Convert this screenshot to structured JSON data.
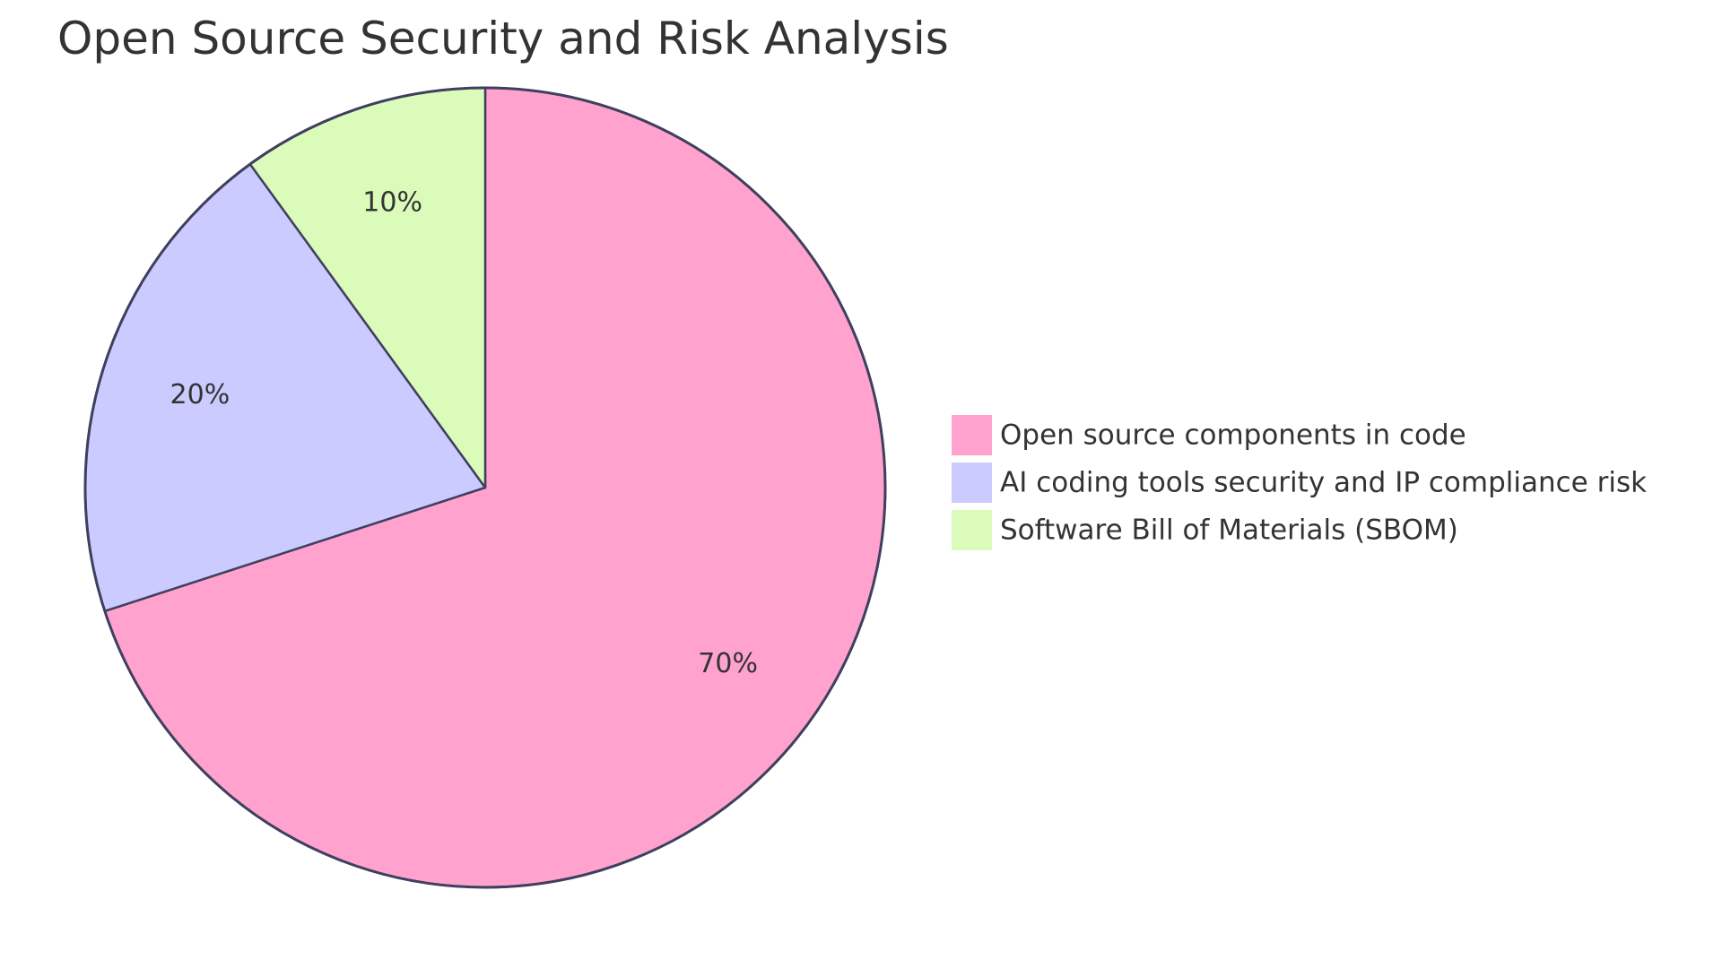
{
  "chart_data": {
    "type": "pie",
    "title": "Open Source Security and Risk Analysis",
    "categories": [
      "Open source components in code",
      "AI coding tools security and IP compliance risk",
      "Software Bill of Materials (SBOM)"
    ],
    "values": [
      70,
      20,
      10
    ],
    "value_labels": [
      "70%",
      "20%",
      "10%"
    ],
    "colors": [
      "#FFA3CE",
      "#CBCBFF",
      "#DAFBB9"
    ],
    "slice_stroke_color": "#3F3F5F",
    "start_angle_deg": 0,
    "direction": "clockwise",
    "legend_position": "right"
  }
}
